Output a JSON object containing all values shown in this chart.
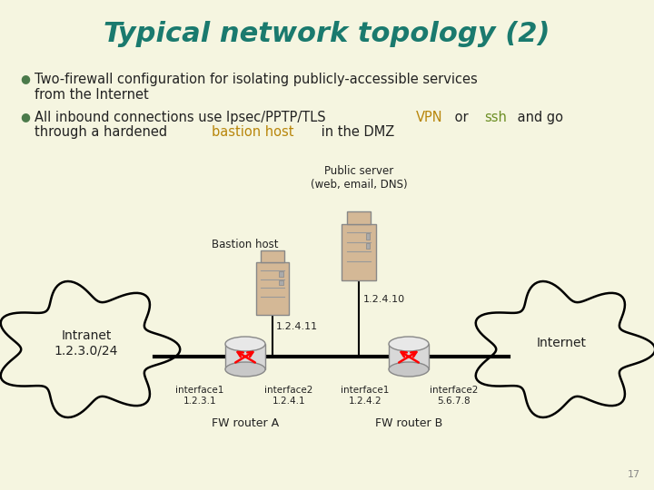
{
  "title": "Typical network topology (2)",
  "title_color": "#1a7a6e",
  "title_fontsize": 22,
  "bg_color": "#f5f5e0",
  "bullet_color": "#4a7a4a",
  "bullet_fontsize": 10.5,
  "label_public_server": "Public server\n(web, email, DNS)",
  "label_bastion_host": "Bastion host",
  "label_intranet": "Intranet\n1.2.3.0/24",
  "label_internet": "Internet",
  "label_fw_a": "FW router A",
  "label_fw_b": "FW router B",
  "label_iface1_a": "interface1\n1.2.3.1",
  "label_iface2_a": "interface2\n1.2.4.1",
  "label_iface1_b": "interface1\n1.2.4.2",
  "label_iface2_b": "interface2\n5.6.7.8",
  "label_bastion_ip": "1.2.4.11",
  "label_server_ip": "1.2.4.10",
  "page_number": "17"
}
